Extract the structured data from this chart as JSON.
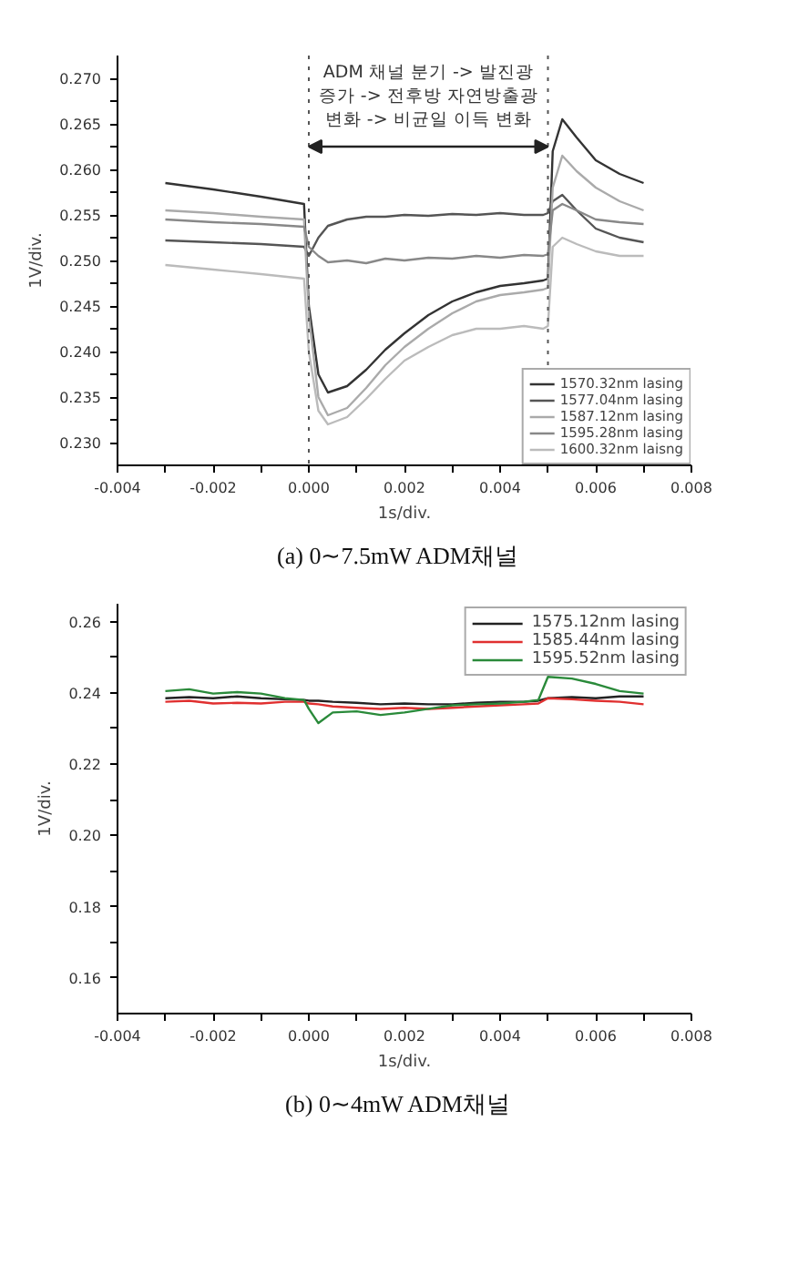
{
  "chart_data": [
    {
      "type": "line",
      "xlabel": "1s/div.",
      "ylabel": "1V/div.",
      "legend": "bottom right",
      "grid": false,
      "line_style": "solid",
      "marker": "none",
      "xlim": [
        -0.004,
        0.008
      ],
      "ylim": [
        0.2275,
        0.2725
      ],
      "xticks": [
        {
          "value": -0.004,
          "label": "-0.004"
        },
        {
          "value": -0.003,
          "label": null
        },
        {
          "value": -0.002,
          "label": "-0.002"
        },
        {
          "value": -0.001,
          "label": null
        },
        {
          "value": 0.0,
          "label": "0.000"
        },
        {
          "value": 0.001,
          "label": null
        },
        {
          "value": 0.002,
          "label": "0.002"
        },
        {
          "value": 0.003,
          "label": null
        },
        {
          "value": 0.004,
          "label": "0.004"
        },
        {
          "value": 0.005,
          "label": null
        },
        {
          "value": 0.006,
          "label": "0.006"
        },
        {
          "value": 0.007,
          "label": null
        },
        {
          "value": 0.008,
          "label": "0.008"
        }
      ],
      "yticks": [
        {
          "value": 0.23,
          "label": "0.230"
        },
        {
          "value": 0.2325,
          "label": null
        },
        {
          "value": 0.235,
          "label": "0.235"
        },
        {
          "value": 0.2375,
          "label": null
        },
        {
          "value": 0.24,
          "label": "0.240"
        },
        {
          "value": 0.2425,
          "label": null
        },
        {
          "value": 0.245,
          "label": "0.245"
        },
        {
          "value": 0.2475,
          "label": null
        },
        {
          "value": 0.25,
          "label": "0.250"
        },
        {
          "value": 0.2525,
          "label": null
        },
        {
          "value": 0.255,
          "label": "0.255"
        },
        {
          "value": 0.2575,
          "label": null
        },
        {
          "value": 0.26,
          "label": "0.260"
        },
        {
          "value": 0.2625,
          "label": null
        },
        {
          "value": 0.265,
          "label": "0.265"
        },
        {
          "value": 0.2675,
          "label": null
        },
        {
          "value": 0.27,
          "label": "0.270"
        }
      ],
      "x": [
        -0.003,
        -0.002,
        -0.001,
        -0.0001,
        0.0,
        0.0002,
        0.0004,
        0.0008,
        0.0012,
        0.0016,
        0.002,
        0.0025,
        0.003,
        0.0035,
        0.004,
        0.0045,
        0.0049,
        0.005,
        0.0051,
        0.0053,
        0.0056,
        0.006,
        0.0065,
        0.007
      ],
      "series": [
        {
          "name": "1570.32nm lasing",
          "color": "#333333",
          "values": [
            0.2585,
            0.2578,
            0.257,
            0.2562,
            0.245,
            0.2375,
            0.2355,
            0.2362,
            0.238,
            0.2402,
            0.242,
            0.244,
            0.2455,
            0.2465,
            0.2472,
            0.2475,
            0.2478,
            0.248,
            0.262,
            0.2655,
            0.2635,
            0.261,
            0.2595,
            0.2585
          ]
        },
        {
          "name": "1577.04nm lasing",
          "color": "#555555",
          "values": [
            0.2522,
            0.252,
            0.2518,
            0.2515,
            0.2505,
            0.2525,
            0.2538,
            0.2545,
            0.2548,
            0.2548,
            0.255,
            0.2549,
            0.2551,
            0.255,
            0.2552,
            0.255,
            0.255,
            0.2552,
            0.2565,
            0.2572,
            0.2555,
            0.2535,
            0.2525,
            0.252
          ]
        },
        {
          "name": "1587.12nm lasing",
          "color": "#aaaaaa",
          "values": [
            0.2555,
            0.2552,
            0.2548,
            0.2545,
            0.244,
            0.235,
            0.233,
            0.2338,
            0.236,
            0.2385,
            0.2405,
            0.2425,
            0.2442,
            0.2455,
            0.2462,
            0.2465,
            0.2468,
            0.247,
            0.258,
            0.2615,
            0.2598,
            0.258,
            0.2565,
            0.2555
          ]
        },
        {
          "name": "1595.28nm lasing",
          "color": "#888888",
          "values": [
            0.2545,
            0.2542,
            0.254,
            0.2537,
            0.2515,
            0.2505,
            0.2498,
            0.25,
            0.2497,
            0.2502,
            0.25,
            0.2503,
            0.2502,
            0.2505,
            0.2503,
            0.2506,
            0.2505,
            0.2507,
            0.2555,
            0.2562,
            0.2555,
            0.2545,
            0.2542,
            0.254
          ]
        },
        {
          "name": "1600.32nm laisng",
          "color": "#bbbbbb",
          "values": [
            0.2495,
            0.249,
            0.2485,
            0.248,
            0.24,
            0.2335,
            0.232,
            0.2328,
            0.2348,
            0.237,
            0.239,
            0.2405,
            0.2418,
            0.2425,
            0.2425,
            0.2428,
            0.2425,
            0.2428,
            0.2515,
            0.2525,
            0.2518,
            0.251,
            0.2505,
            0.2505
          ]
        }
      ],
      "ref_lines": [
        {
          "axis": "x",
          "value": 0.0,
          "color": "#555555",
          "line_style": "dotted"
        },
        {
          "axis": "x",
          "value": 0.005,
          "color": "#555555",
          "line_style": "dotted"
        }
      ],
      "annotations": [
        "ADM 채널 분기 -> 발진광\n증가 -> 전후방 자연방출광\n변화 -> 비균일 이득 변화",
        "(a)  0∼7.5mW  ADM채널"
      ]
    },
    {
      "type": "line",
      "xlabel": "1s/div.",
      "ylabel": "1V/div.",
      "legend": "top right",
      "grid": false,
      "line_style": "solid",
      "marker": "none",
      "xlim": [
        -0.004,
        0.008
      ],
      "ylim": [
        0.15,
        0.265
      ],
      "xticks": [
        {
          "value": -0.004,
          "label": "-0.004"
        },
        {
          "value": -0.003,
          "label": null
        },
        {
          "value": -0.002,
          "label": "-0.002"
        },
        {
          "value": -0.001,
          "label": null
        },
        {
          "value": 0.0,
          "label": "0.000"
        },
        {
          "value": 0.001,
          "label": null
        },
        {
          "value": 0.002,
          "label": "0.002"
        },
        {
          "value": 0.003,
          "label": null
        },
        {
          "value": 0.004,
          "label": "0.004"
        },
        {
          "value": 0.005,
          "label": null
        },
        {
          "value": 0.006,
          "label": "0.006"
        },
        {
          "value": 0.007,
          "label": null
        },
        {
          "value": 0.008,
          "label": "0.008"
        }
      ],
      "yticks": [
        {
          "value": 0.16,
          "label": "0.16"
        },
        {
          "value": 0.17,
          "label": null
        },
        {
          "value": 0.18,
          "label": "0.18"
        },
        {
          "value": 0.19,
          "label": null
        },
        {
          "value": 0.2,
          "label": "0.20"
        },
        {
          "value": 0.21,
          "label": null
        },
        {
          "value": 0.22,
          "label": "0.22"
        },
        {
          "value": 0.23,
          "label": null
        },
        {
          "value": 0.24,
          "label": "0.24"
        },
        {
          "value": 0.25,
          "label": null
        },
        {
          "value": 0.26,
          "label": "0.26"
        }
      ],
      "x": [
        -0.003,
        -0.0025,
        -0.002,
        -0.0015,
        -0.001,
        -0.0005,
        -0.0001,
        0.0,
        0.0002,
        0.0005,
        0.001,
        0.0015,
        0.002,
        0.0025,
        0.003,
        0.0035,
        0.004,
        0.0045,
        0.0048,
        0.005,
        0.0055,
        0.006,
        0.0065,
        0.007
      ],
      "series": [
        {
          "name": "1575.12nm lasing",
          "color": "#222222",
          "values": [
            0.2385,
            0.2388,
            0.2385,
            0.239,
            0.2385,
            0.2382,
            0.238,
            0.2378,
            0.2378,
            0.2375,
            0.2372,
            0.2368,
            0.237,
            0.2368,
            0.2368,
            0.2372,
            0.2375,
            0.2375,
            0.2378,
            0.2385,
            0.2388,
            0.2385,
            0.239,
            0.239
          ]
        },
        {
          "name": "1585.44nm lasing",
          "color": "#e03030",
          "values": [
            0.2375,
            0.2378,
            0.237,
            0.2372,
            0.237,
            0.2375,
            0.2375,
            0.237,
            0.2368,
            0.2362,
            0.2358,
            0.2355,
            0.2358,
            0.2355,
            0.2358,
            0.2362,
            0.2365,
            0.2368,
            0.237,
            0.2385,
            0.2382,
            0.2378,
            0.2375,
            0.2368
          ]
        },
        {
          "name": "1595.52nm lasing",
          "color": "#2a8a3a",
          "values": [
            0.2405,
            0.241,
            0.2398,
            0.2402,
            0.2398,
            0.2385,
            0.238,
            0.2355,
            0.2315,
            0.2345,
            0.2348,
            0.2338,
            0.2345,
            0.2355,
            0.2365,
            0.2368,
            0.237,
            0.2375,
            0.238,
            0.2445,
            0.244,
            0.2425,
            0.2405,
            0.2398
          ]
        }
      ],
      "annotations": [
        "(b)  0∼4mW  ADM채널"
      ]
    }
  ]
}
